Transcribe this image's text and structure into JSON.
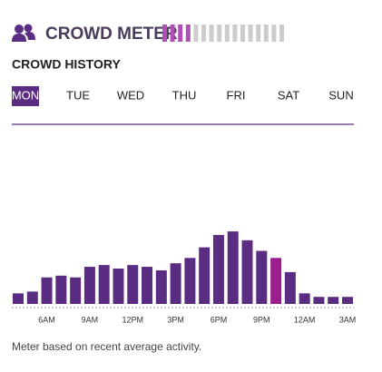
{
  "header": {
    "title": "CROWD METER",
    "meter": {
      "level": 4,
      "segments": 16,
      "color": "#b04fb5",
      "empty_color": "#cccccc"
    }
  },
  "subtitle": "CROWD HISTORY",
  "days": [
    "MON",
    "TUE",
    "WED",
    "THU",
    "FRI",
    "SAT",
    "SUN"
  ],
  "selected_day": 0,
  "chart_data": {
    "type": "bar",
    "categories": [
      null,
      null,
      "6AM",
      null,
      null,
      "9AM",
      null,
      null,
      "12PM",
      null,
      null,
      "3PM",
      null,
      null,
      "6PM",
      null,
      null,
      "9PM",
      null,
      null,
      "12AM",
      null,
      null,
      "3AM"
    ],
    "values": [
      6,
      7,
      15,
      16,
      15,
      21,
      22,
      20,
      22,
      21,
      19,
      23,
      26,
      32,
      39,
      41,
      36,
      30,
      26,
      18,
      6,
      4,
      4,
      4
    ],
    "color": "#5b2d82",
    "highlight": 18,
    "highlight_color": "#9b1d8e",
    "ylim": [
      0,
      100
    ]
  },
  "footer": "Meter based on recent average activity."
}
